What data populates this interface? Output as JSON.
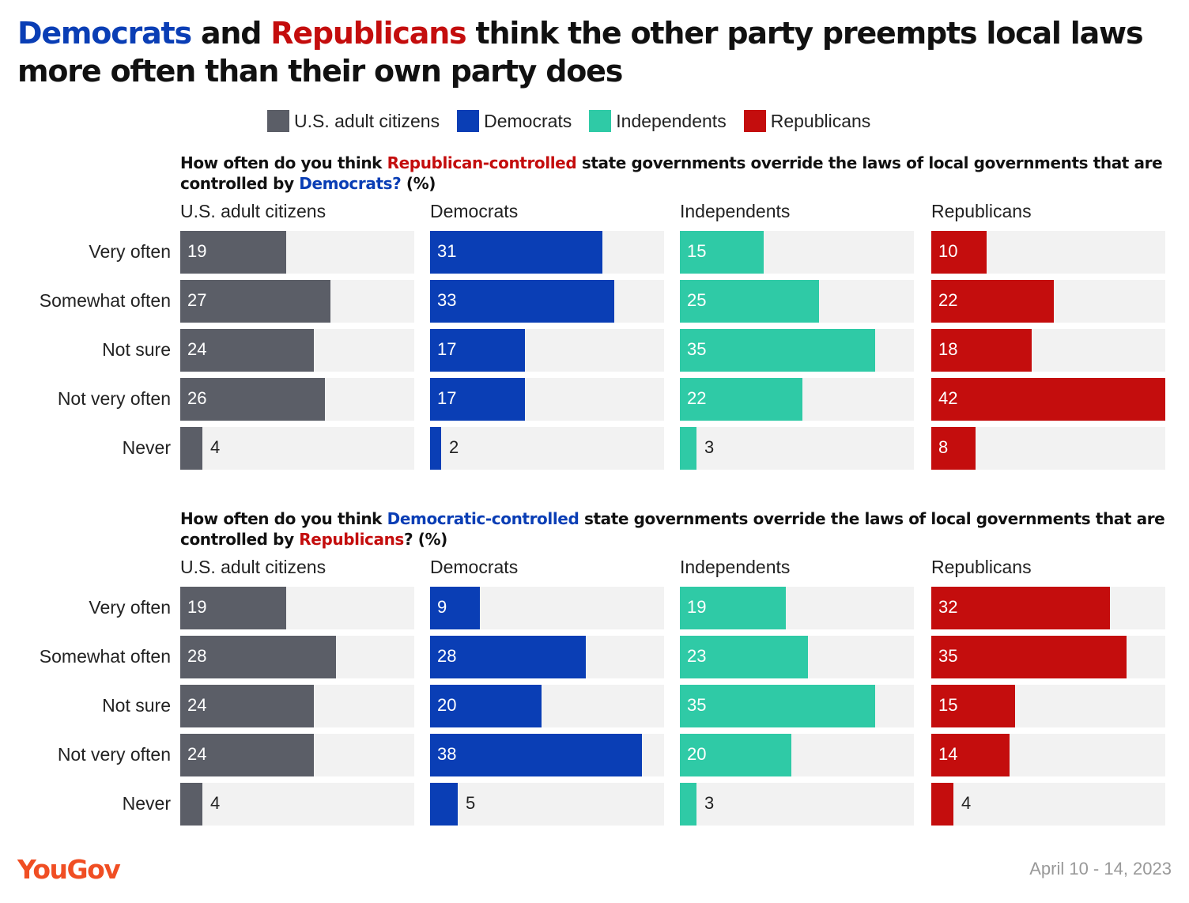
{
  "title": {
    "dem": "Democrats",
    "and": " and ",
    "rep": "Republicans",
    "rest": " think the other party preempts local laws more often than their own party does"
  },
  "colors": {
    "U.S. adult citizens": "#5b5e67",
    "Democrats": "#0a3eb5",
    "Independents": "#2fcaa6",
    "Republicans": "#c40d0d",
    "track": "#f2f2f2"
  },
  "legend": [
    "U.S. adult citizens",
    "Democrats",
    "Independents",
    "Republicans"
  ],
  "chart_data": [
    {
      "type": "bar",
      "question": {
        "p1": "How often do you think ",
        "h1": "Republican-controlled",
        "p2": " state governments override the laws of local governments that are controlled by ",
        "h2": "Democrats?",
        "p3": " (%)"
      },
      "categories": [
        "Very often",
        "Somewhat often",
        "Not sure",
        "Not very often",
        "Never"
      ],
      "xlim": [
        0,
        42
      ],
      "series": [
        {
          "name": "U.S. adult citizens",
          "values": [
            19,
            27,
            24,
            26,
            4
          ]
        },
        {
          "name": "Democrats",
          "values": [
            31,
            33,
            17,
            17,
            2
          ]
        },
        {
          "name": "Independents",
          "values": [
            15,
            25,
            35,
            22,
            3
          ]
        },
        {
          "name": "Republicans",
          "values": [
            10,
            22,
            18,
            42,
            8
          ]
        }
      ]
    },
    {
      "type": "bar",
      "question": {
        "p1": "How often do you think ",
        "h1": "Democratic-controlled",
        "p2": " state governments override the laws of local governments that are controlled by ",
        "h2": "Republicans",
        "p3": "? (%)"
      },
      "categories": [
        "Very often",
        "Somewhat often",
        "Not sure",
        "Not very often",
        "Never"
      ],
      "xlim": [
        0,
        42
      ],
      "series": [
        {
          "name": "U.S. adult citizens",
          "values": [
            19,
            28,
            24,
            24,
            4
          ]
        },
        {
          "name": "Democrats",
          "values": [
            9,
            28,
            20,
            38,
            5
          ]
        },
        {
          "name": "Independents",
          "values": [
            19,
            23,
            35,
            20,
            3
          ]
        },
        {
          "name": "Republicans",
          "values": [
            32,
            35,
            15,
            14,
            4
          ]
        }
      ]
    }
  ],
  "footer": {
    "logo": "YouGov",
    "date": "April 10 - 14, 2023"
  }
}
